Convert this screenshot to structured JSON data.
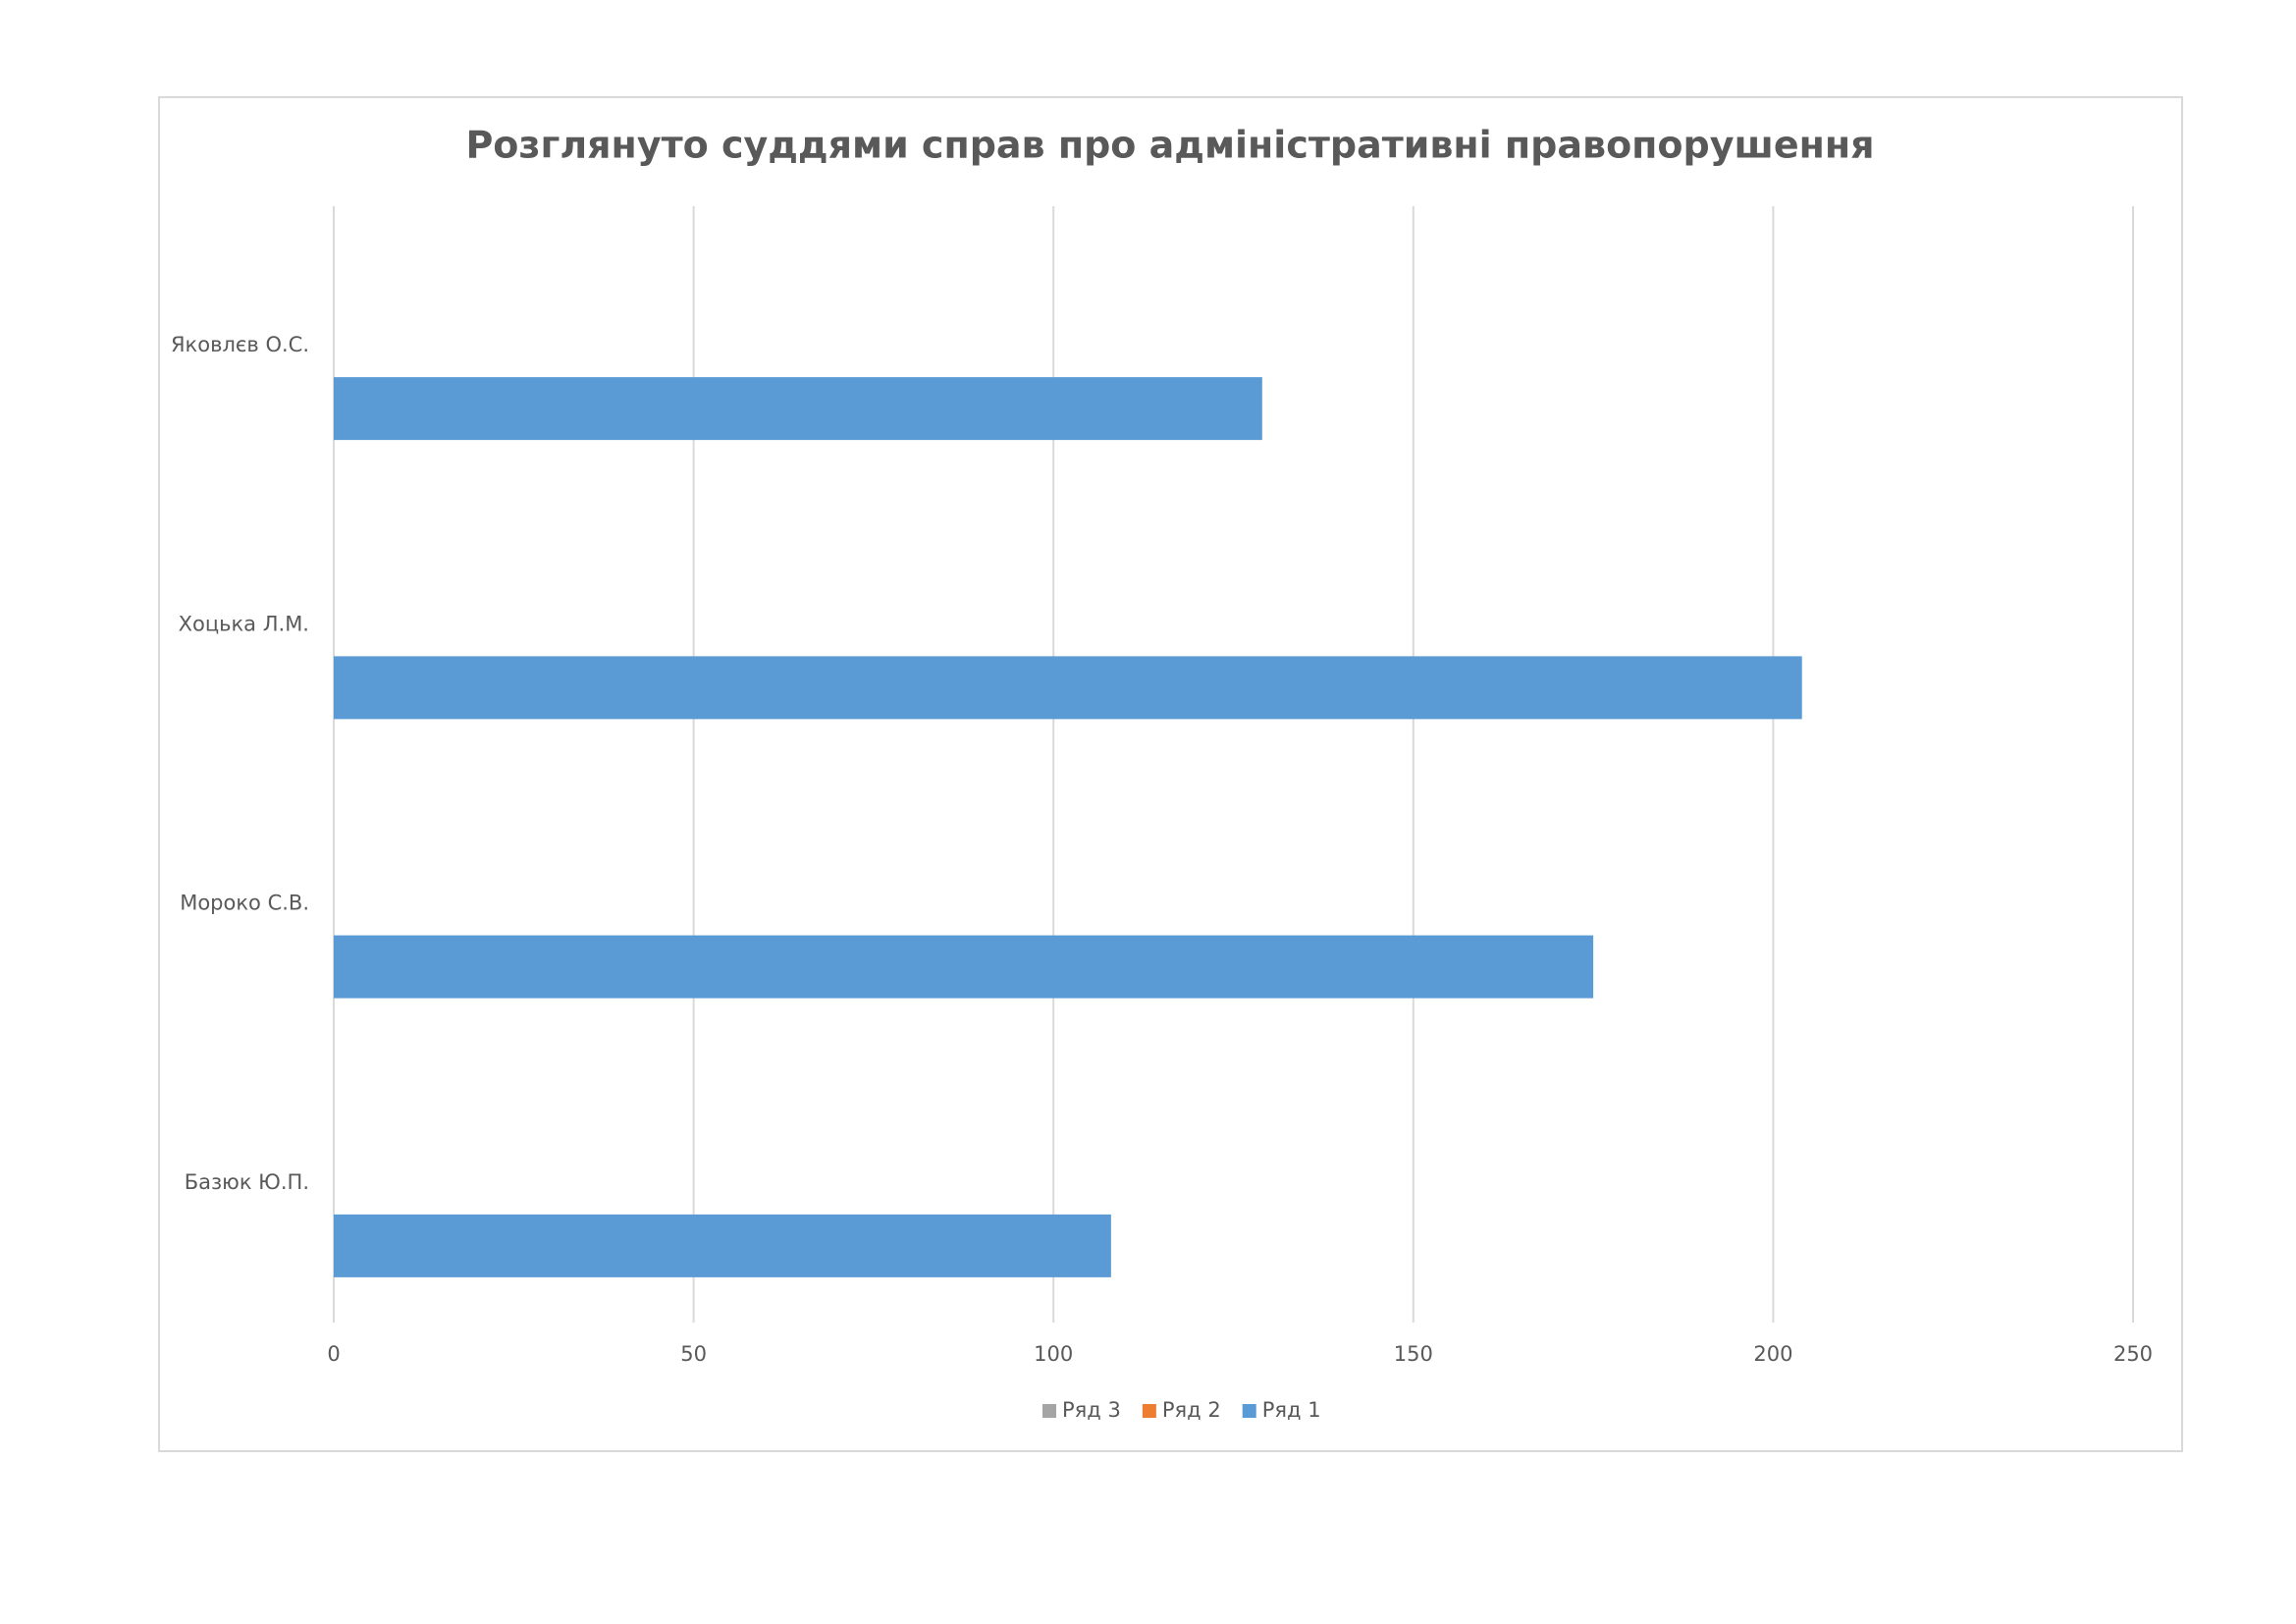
{
  "chart_data": {
    "type": "bar",
    "orientation": "horizontal",
    "title": "Розглянуто суддями справ про адміністративні правопорушення",
    "categories": [
      "Базюк Ю.П.",
      "Мороко С.В.",
      "Хоцька Л.М.",
      "Яковлєв О.С."
    ],
    "series": [
      {
        "name": "Ряд 1",
        "color": "#5b9bd5",
        "values": [
          108,
          175,
          204,
          129
        ]
      },
      {
        "name": "Ряд 2",
        "color": "#ed7d31",
        "values": [
          null,
          null,
          null,
          null
        ]
      },
      {
        "name": "Ряд 3",
        "color": "#a5a5a5",
        "values": [
          null,
          null,
          null,
          null
        ]
      }
    ],
    "xlim": [
      0,
      250
    ],
    "xticks": [
      0,
      50,
      100,
      150,
      200,
      250
    ],
    "grid": true,
    "legend": "bottom"
  }
}
